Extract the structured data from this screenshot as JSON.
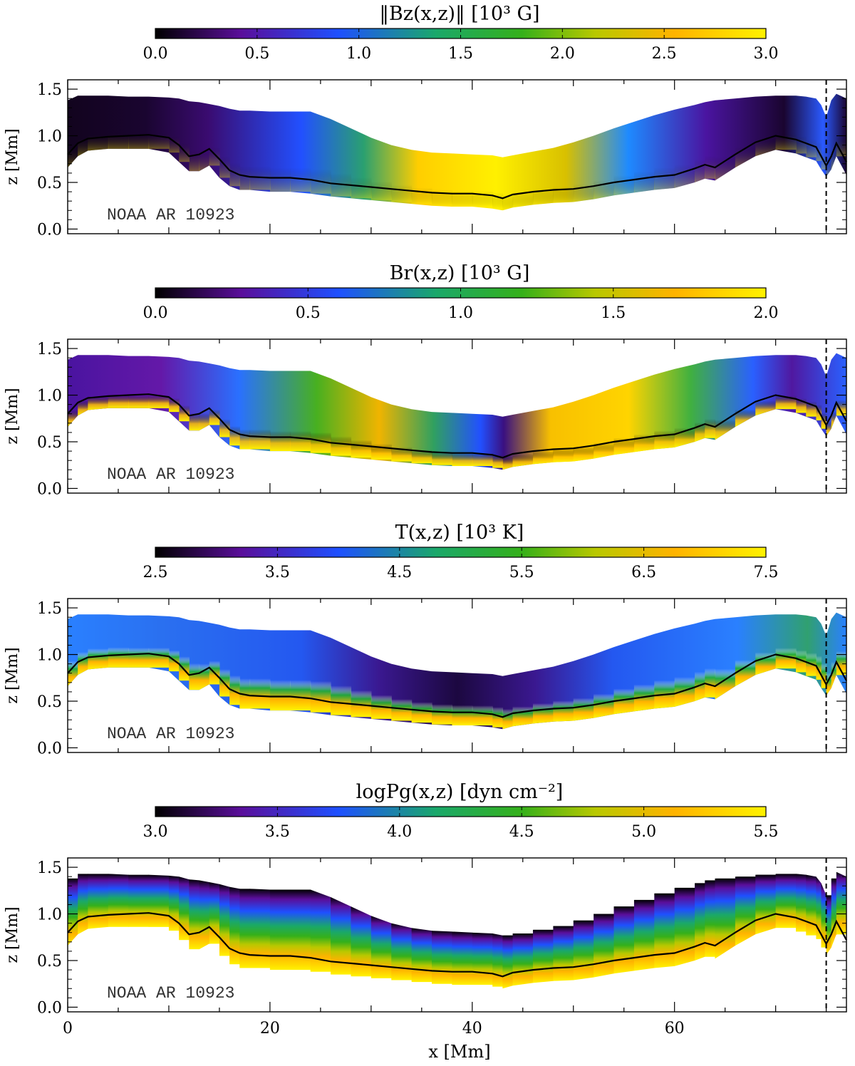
{
  "chart_data": {
    "type": "heatmap",
    "shared": {
      "xlabel": "x [Mm]",
      "ylabel": "z [Mm]",
      "xlim": [
        0,
        77
      ],
      "ylim": [
        -0.05,
        1.6
      ],
      "x_ticks": [
        0,
        20,
        40,
        60
      ],
      "x_tick_labels": [
        "0",
        "20",
        "40",
        "60"
      ],
      "y_ticks": [
        0.0,
        0.5,
        1.0,
        1.5
      ],
      "y_tick_labels": [
        "0.0",
        "0.5",
        "1.0",
        "1.5"
      ],
      "annotation": "NOAA AR 10923",
      "dashed_vertical_x": 75,
      "colormap": [
        "#000000",
        "#5a0e9a",
        "#1e50ff",
        "#1aa86a",
        "#35b01a",
        "#b8c800",
        "#ffb300",
        "#fff200"
      ],
      "profile": {
        "x": [
          0,
          1,
          2,
          4,
          6,
          8,
          10,
          11,
          12,
          13,
          14,
          15,
          16,
          17,
          18,
          20,
          22,
          24,
          26,
          28,
          30,
          32,
          34,
          36,
          38,
          40,
          42,
          43,
          44,
          46,
          48,
          50,
          52,
          54,
          56,
          58,
          60,
          62,
          63,
          64,
          66,
          68,
          70,
          72,
          73,
          74,
          74.5,
          75,
          75.5,
          76,
          77
        ],
        "z_line": [
          0.8,
          0.92,
          0.97,
          0.99,
          1.0,
          1.01,
          0.98,
          0.9,
          0.78,
          0.8,
          0.86,
          0.75,
          0.63,
          0.58,
          0.56,
          0.55,
          0.55,
          0.53,
          0.49,
          0.47,
          0.45,
          0.43,
          0.41,
          0.39,
          0.38,
          0.38,
          0.36,
          0.33,
          0.37,
          0.4,
          0.42,
          0.43,
          0.46,
          0.5,
          0.53,
          0.56,
          0.58,
          0.65,
          0.69,
          0.66,
          0.8,
          0.93,
          1.0,
          0.96,
          0.92,
          0.88,
          0.78,
          0.68,
          0.78,
          0.92,
          0.72
        ],
        "z_top": [
          1.38,
          1.43,
          1.43,
          1.43,
          1.42,
          1.42,
          1.41,
          1.4,
          1.37,
          1.36,
          1.34,
          1.32,
          1.29,
          1.27,
          1.27,
          1.26,
          1.26,
          1.26,
          1.18,
          1.08,
          0.98,
          0.9,
          0.85,
          0.82,
          0.81,
          0.8,
          0.79,
          0.77,
          0.79,
          0.83,
          0.87,
          0.93,
          1.0,
          1.08,
          1.15,
          1.22,
          1.28,
          1.33,
          1.36,
          1.38,
          1.4,
          1.42,
          1.43,
          1.43,
          1.42,
          1.4,
          1.33,
          1.2,
          1.38,
          1.45,
          1.4
        ],
        "z_bottom": [
          0.66,
          0.78,
          0.84,
          0.86,
          0.86,
          0.86,
          0.82,
          0.72,
          0.62,
          0.62,
          0.68,
          0.55,
          0.46,
          0.42,
          0.42,
          0.4,
          0.4,
          0.38,
          0.35,
          0.33,
          0.31,
          0.29,
          0.27,
          0.25,
          0.24,
          0.24,
          0.22,
          0.2,
          0.23,
          0.26,
          0.28,
          0.29,
          0.32,
          0.36,
          0.39,
          0.42,
          0.44,
          0.5,
          0.54,
          0.52,
          0.66,
          0.78,
          0.85,
          0.81,
          0.77,
          0.73,
          0.64,
          0.56,
          0.64,
          0.78,
          0.58
        ]
      }
    },
    "panels": [
      {
        "key": "bz",
        "colorbar_title": "‖Bz(x,z)‖ [10³ G]",
        "colorbar_range": [
          0.0,
          3.0
        ],
        "colorbar_tick_labels": [
          "0.0",
          "0.5",
          "1.0",
          "1.5",
          "2.0",
          "2.5",
          "3.0"
        ]
      },
      {
        "key": "br",
        "colorbar_title": "Br(x,z) [10³ G]",
        "colorbar_range": [
          0.0,
          2.0
        ],
        "colorbar_tick_labels": [
          "0.0",
          "0.5",
          "1.0",
          "1.5",
          "2.0"
        ]
      },
      {
        "key": "t",
        "colorbar_title": "T(x,z) [10³ K]",
        "colorbar_range": [
          2.5,
          7.5
        ],
        "colorbar_tick_labels": [
          "2.5",
          "3.5",
          "4.5",
          "5.5",
          "6.5",
          "7.5"
        ]
      },
      {
        "key": "pg",
        "colorbar_title": "logPg(x,z) [dyn cm⁻²]",
        "colorbar_range": [
          3.0,
          5.5
        ],
        "colorbar_tick_labels": [
          "3.0",
          "3.5",
          "4.0",
          "4.5",
          "5.0",
          "5.5"
        ]
      }
    ]
  }
}
